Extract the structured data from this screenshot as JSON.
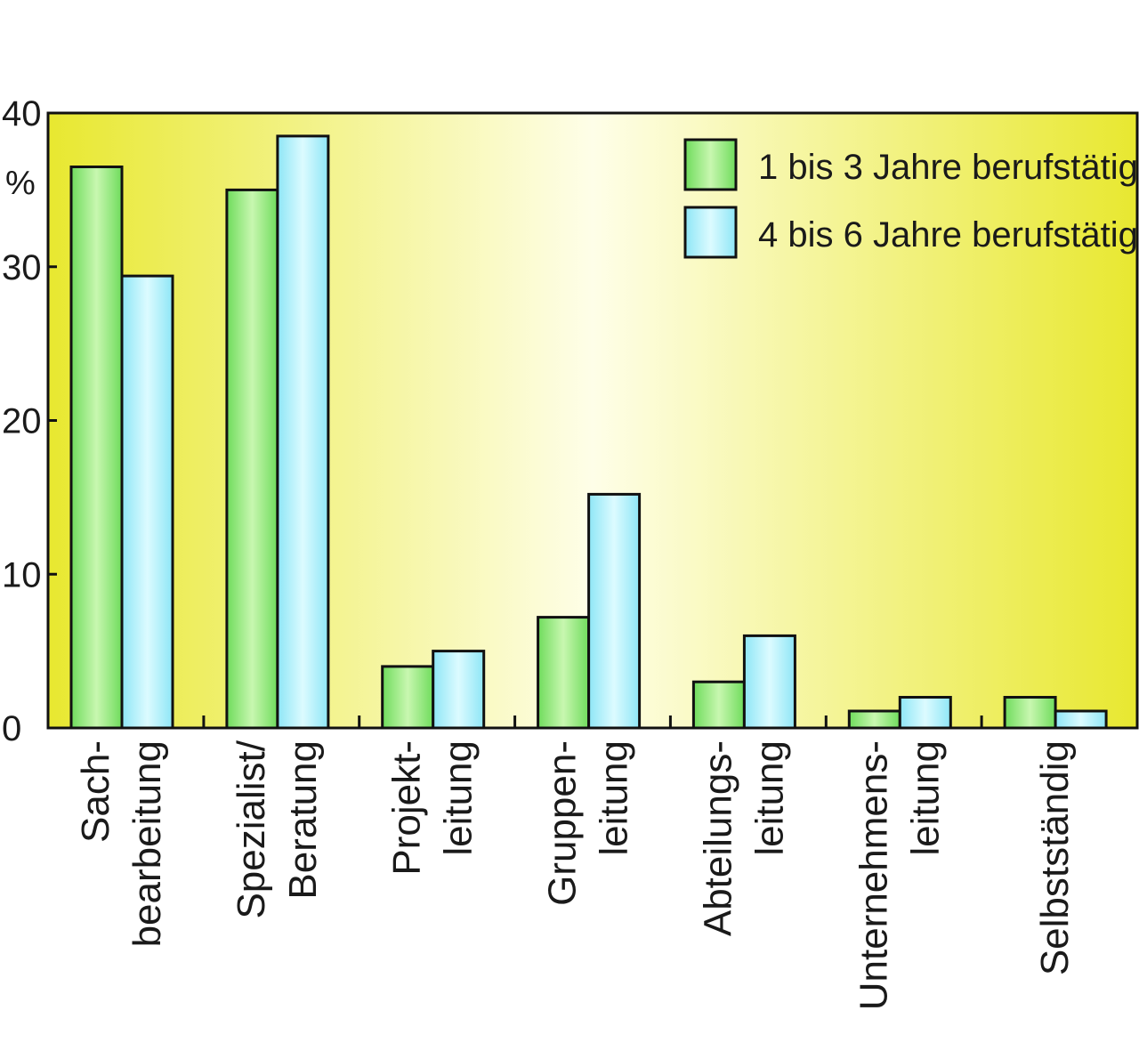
{
  "chart_data": {
    "type": "bar",
    "title": "",
    "xlabel": "",
    "ylabel": "%",
    "ylim": [
      0,
      40
    ],
    "yticks": [
      0,
      10,
      20,
      30,
      40
    ],
    "grid": false,
    "legend_position": "top-right",
    "categories": [
      "Sach-\nbearbeitung",
      "Spezialist/\nBeratung",
      "Projekt-\nleitung",
      "Gruppen-\nleitung",
      "Abteilungs-\nleitung",
      "Unternehmens-\nleitung",
      "Selbstständig"
    ],
    "series": [
      {
        "name": "1 bis 3 Jahre berufstätig",
        "color": "#8ee87a",
        "values": [
          36.5,
          35,
          4,
          7.2,
          3,
          1.1,
          2
        ]
      },
      {
        "name": "4 bis 6 Jahre berufstätig",
        "color": "#aef0fa",
        "values": [
          29.4,
          38.5,
          5,
          15.2,
          6,
          2,
          1.1
        ]
      }
    ],
    "colors": {
      "background_edge": "#e8e830",
      "background_center": "#fefee8",
      "bar_outline": "#111111"
    }
  }
}
